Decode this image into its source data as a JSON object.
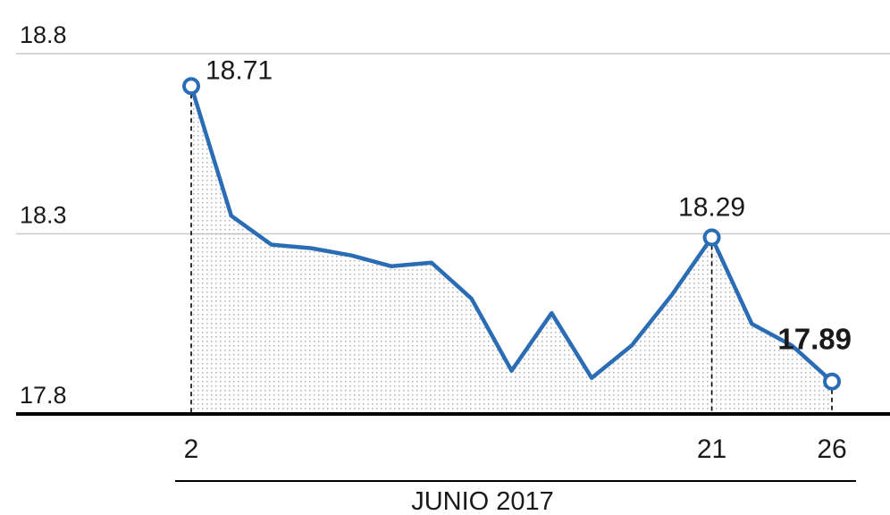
{
  "chart_data": {
    "type": "line",
    "title": "",
    "xlabel": "JUNIO 2017",
    "ylabel": "",
    "x_tick_labels": [
      "2",
      "21",
      "26"
    ],
    "y_tick_labels": [
      "18.8",
      "18.3",
      "17.8"
    ],
    "ylim": [
      17.8,
      18.8
    ],
    "grid": "horizontal",
    "line_color": "#2a6db5",
    "fill": "dotted-area",
    "series": [
      {
        "values": [
          18.71,
          18.35,
          18.27,
          18.26,
          18.24,
          18.21,
          18.22,
          18.12,
          17.92,
          18.08,
          17.9,
          17.99,
          18.13,
          18.29,
          18.05,
          17.99,
          17.89
        ]
      }
    ],
    "annotations": [
      {
        "index": 0,
        "label": "18.71",
        "marker": true,
        "bold": false,
        "date": "2"
      },
      {
        "index": 13,
        "label": "18.29",
        "marker": true,
        "bold": false,
        "date": "21"
      },
      {
        "index": 16,
        "label": "17.89",
        "marker": true,
        "bold": true,
        "date": "26"
      }
    ]
  }
}
